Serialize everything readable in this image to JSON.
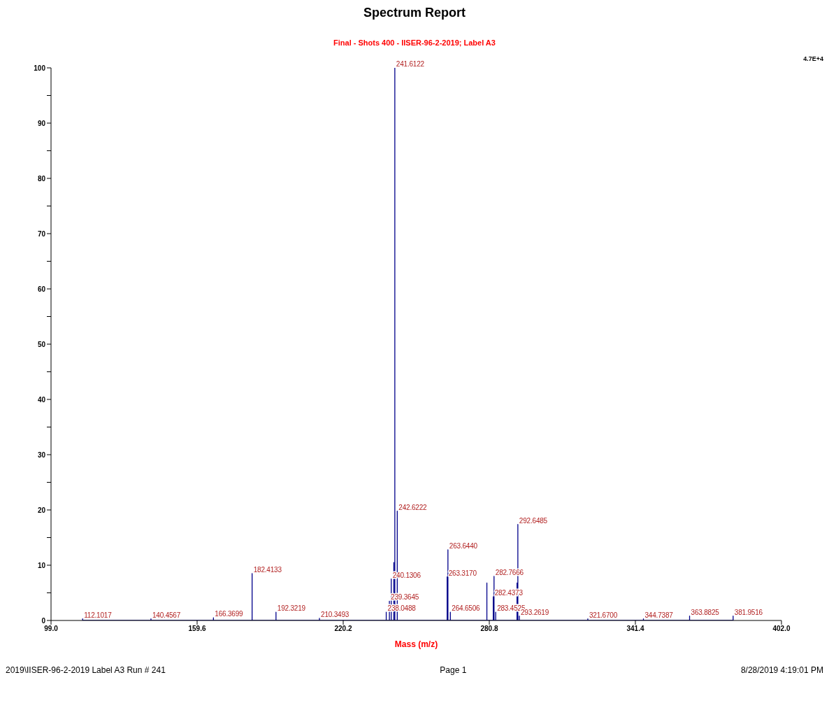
{
  "chart_data": {
    "type": "line",
    "title": "Spectrum Report",
    "subtitle": "Final - Shots 400 - IISER-96-2-2019; Label A3",
    "xlabel": "Mass (m/z)",
    "xlim": [
      99,
      402
    ],
    "xticks": [
      {
        "value": 99,
        "label": "99.0"
      },
      {
        "value": 159.6,
        "label": "159.6"
      },
      {
        "value": 220.2,
        "label": "220.2"
      },
      {
        "value": 280.8,
        "label": "280.8"
      },
      {
        "value": 341.4,
        "label": "341.4"
      },
      {
        "value": 402,
        "label": "402.0"
      }
    ],
    "ylim": [
      0,
      100
    ],
    "yticks": [
      0,
      {
        "value": 5,
        "label": null
      },
      10,
      {
        "value": 15,
        "label": null
      },
      20,
      {
        "value": 25,
        "label": null
      },
      30,
      {
        "value": 35,
        "label": null
      },
      40,
      {
        "value": 45,
        "label": null
      },
      50,
      {
        "value": 55,
        "label": null
      },
      60,
      {
        "value": 65,
        "label": null
      },
      70,
      {
        "value": 75,
        "label": null
      },
      80,
      {
        "value": 85,
        "label": null
      },
      90,
      {
        "value": 95,
        "label": null
      },
      100
    ],
    "grid": false,
    "marker": "none",
    "line_style": "solid",
    "series": [
      {
        "color": "#00008b",
        "x": [
          112.1017,
          112.1017,
          112.1017,
          140.4567,
          140.4567,
          140.4567,
          166.3699,
          166.3699,
          166.3699,
          182.4133,
          182.4133,
          182.4133,
          192.3219,
          192.3219,
          192.3219,
          210.3493,
          210.3493,
          210.3493,
          238.0488,
          238.0488,
          238.0488,
          239.3645,
          239.3645,
          239.3645,
          240.1306,
          240.1306,
          240.1306,
          241.2,
          241.2,
          241.2,
          241.6122,
          241.6122,
          241.6122,
          242.6222,
          242.6222,
          242.6222,
          263.317,
          263.317,
          263.317,
          263.644,
          263.644,
          263.644,
          264.6506,
          264.6506,
          264.6506,
          279.8,
          279.8,
          279.8,
          282.4373,
          282.4373,
          282.4373,
          282.7666,
          282.7666,
          282.7666,
          283.4525,
          283.4525,
          283.4525,
          292.3,
          292.3,
          292.3,
          292.6485,
          292.6485,
          292.6485,
          293.2619,
          293.2619,
          293.2619,
          321.67,
          321.67,
          321.67,
          344.7387,
          344.7387,
          344.7387,
          363.8825,
          363.8825,
          363.8825,
          381.9516,
          381.9516,
          381.9516
        ],
        "values": [
          0,
          0.3,
          0,
          0,
          0.3,
          0,
          0,
          0.5,
          0,
          0,
          8.5,
          0,
          0,
          1.5,
          0,
          0,
          0.4,
          0,
          0,
          1.5,
          0,
          0,
          3.5,
          0,
          0,
          7.5,
          0,
          0,
          10.5,
          0,
          0,
          100,
          0,
          0,
          19.8,
          0,
          0,
          7.9,
          0,
          0,
          12.8,
          0,
          0,
          1.5,
          0,
          0,
          6.8,
          0,
          0,
          4.3,
          0,
          0,
          8,
          0,
          0,
          1.5,
          0,
          0,
          6.8,
          0,
          0,
          17.4,
          0,
          0,
          0.8,
          0,
          0,
          0.3,
          0,
          0,
          0.3,
          0,
          0,
          0.8,
          0,
          0,
          0.8,
          0
        ]
      }
    ],
    "annotations": [
      {
        "text": "112.1017",
        "x": 112.1017,
        "y": 0.3
      },
      {
        "text": "140.4567",
        "x": 140.4567,
        "y": 0.3
      },
      {
        "text": "166.3699",
        "x": 166.3699,
        "y": 0.5
      },
      {
        "text": "182.4133",
        "x": 182.4133,
        "y": 8.5
      },
      {
        "text": "192.3219",
        "x": 192.3219,
        "y": 1.5
      },
      {
        "text": "210.3493",
        "x": 210.3493,
        "y": 0.4
      },
      {
        "text": "238.0488",
        "x": 238.0488,
        "y": 1.5
      },
      {
        "text": "239.3645",
        "x": 239.3645,
        "y": 3.5
      },
      {
        "text": "240.1306",
        "x": 240.1306,
        "y": 7.5
      },
      {
        "text": "241.6122",
        "x": 241.6122,
        "y": 100
      },
      {
        "text": "242.6222",
        "x": 242.6222,
        "y": 19.8
      },
      {
        "text": "263.3170",
        "x": 263.317,
        "y": 7.9
      },
      {
        "text": "263.6440",
        "x": 263.644,
        "y": 12.8
      },
      {
        "text": "264.6506",
        "x": 264.6506,
        "y": 1.5
      },
      {
        "text": "282.4373",
        "x": 282.4373,
        "y": 4.3
      },
      {
        "text": "282.7666",
        "x": 282.7666,
        "y": 8
      },
      {
        "text": "283.4525",
        "x": 283.4525,
        "y": 1.5
      },
      {
        "text": "292.6485",
        "x": 292.6485,
        "y": 17.4
      },
      {
        "text": "293.2619",
        "x": 293.2619,
        "y": 0.8
      },
      {
        "text": "321.6700",
        "x": 321.67,
        "y": 0.3
      },
      {
        "text": "344.7387",
        "x": 344.7387,
        "y": 0.3
      },
      {
        "text": "363.8825",
        "x": 363.8825,
        "y": 0.8
      },
      {
        "text": "381.9516",
        "x": 381.9516,
        "y": 0.8
      },
      "4.7E+4",
      "2019\\IISER-96-2-2019 Label A3 Run # 241",
      "Page 1",
      "8/28/2019 4:19:01 PM"
    ]
  }
}
